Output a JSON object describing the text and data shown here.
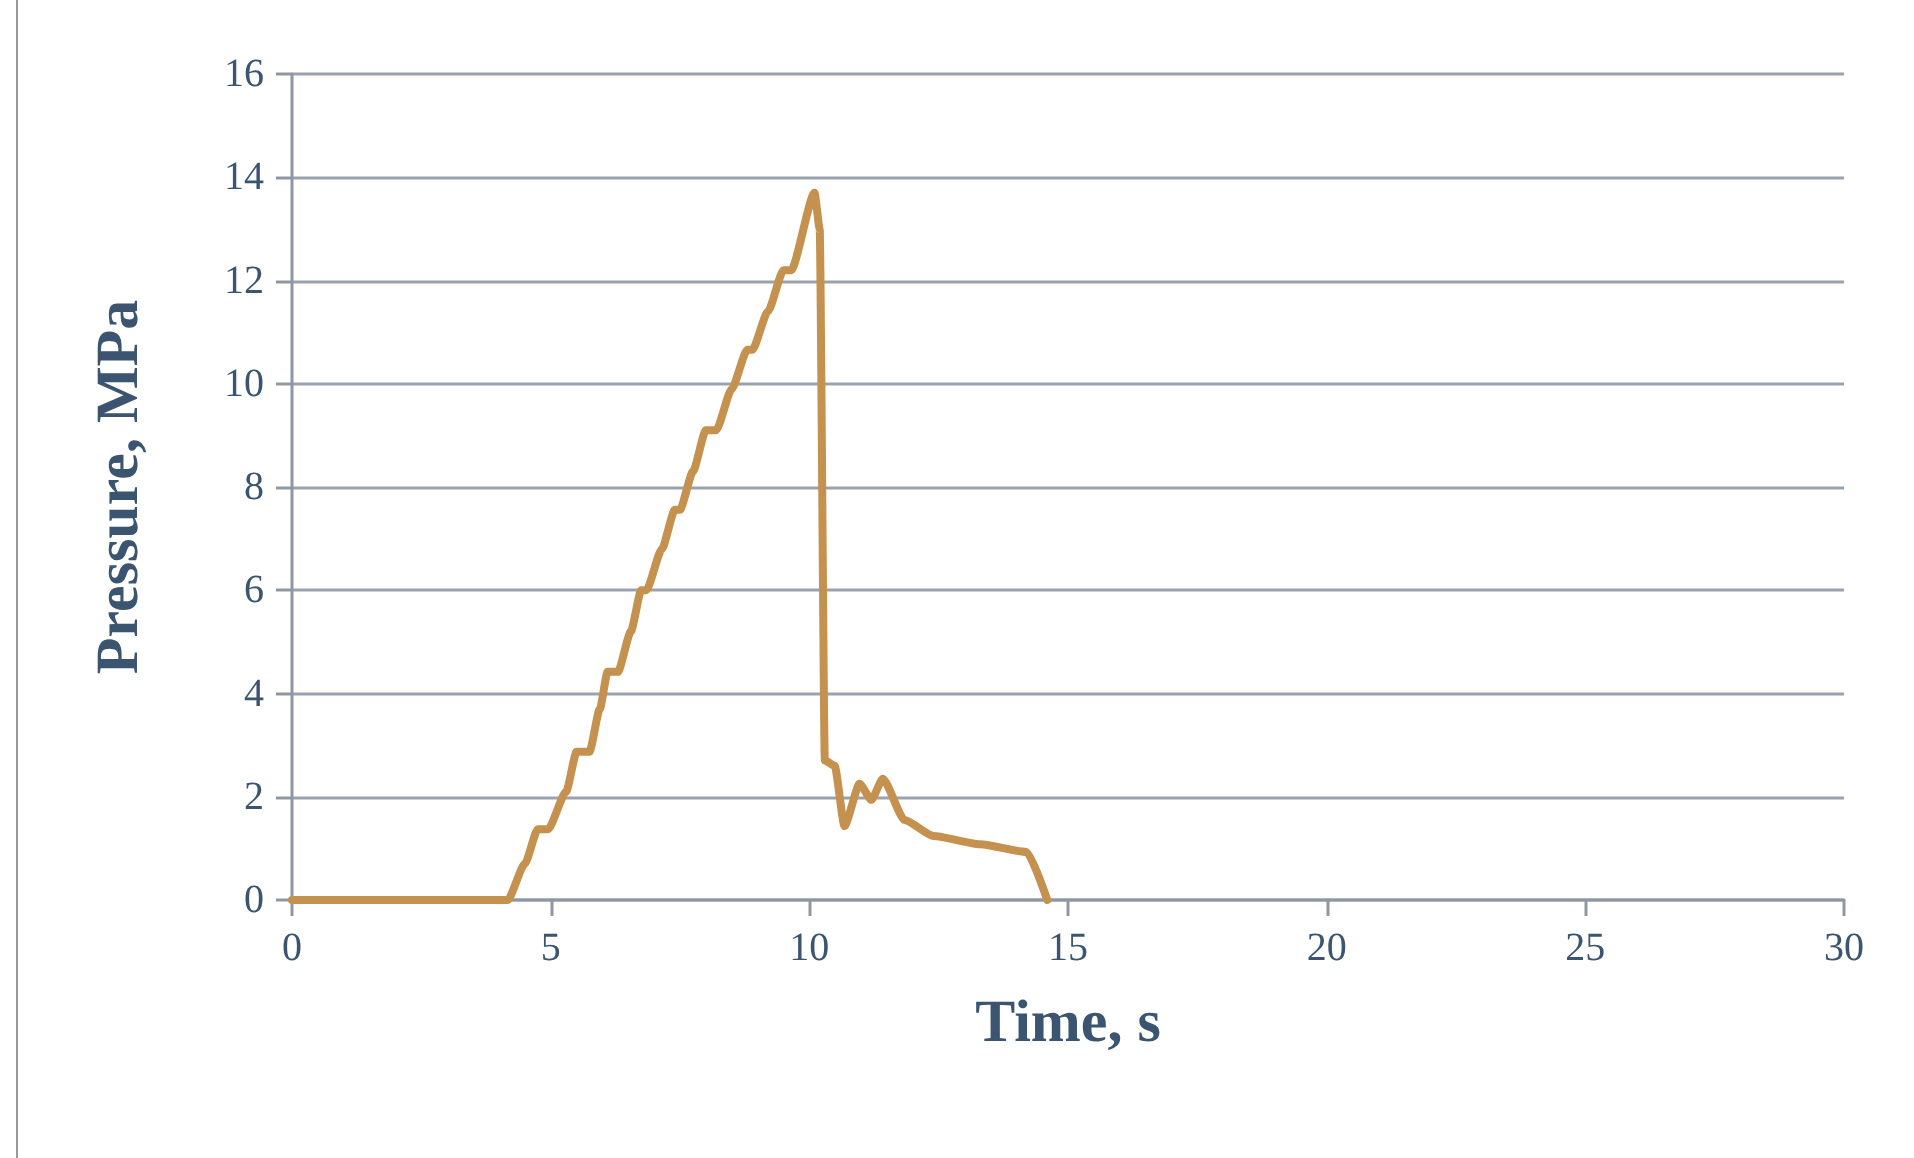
{
  "chart_data": {
    "type": "line",
    "xlabel": "Time, s",
    "ylabel": "Pressure, MPa",
    "x": [
      0,
      4.17,
      4.5,
      4.75,
      4.95,
      5.3,
      5.5,
      5.75,
      5.95,
      6.1,
      6.3,
      6.55,
      6.75,
      6.85,
      7.15,
      7.4,
      7.5,
      7.75,
      8.0,
      8.2,
      8.5,
      8.8,
      8.9,
      9.2,
      9.5,
      9.65,
      10.1,
      10.2,
      10.3,
      10.49,
      10.68,
      10.97,
      11.2,
      11.42,
      11.84,
      12.4,
      13.3,
      14.2,
      14.6
    ],
    "series": [
      {
        "color": "#c4914f",
        "values": [
          0,
          0,
          0.7,
          1.37,
          1.37,
          2.1,
          2.87,
          2.87,
          3.7,
          4.42,
          4.42,
          5.2,
          6.0,
          6.0,
          6.8,
          7.56,
          7.56,
          8.3,
          9.1,
          9.1,
          9.9,
          10.66,
          10.66,
          11.4,
          12.2,
          12.2,
          13.7,
          13.0,
          2.7,
          2.6,
          1.43,
          2.25,
          1.94,
          2.35,
          1.55,
          1.24,
          1.08,
          0.93,
          0
        ]
      }
    ],
    "xlim": [
      0,
      30
    ],
    "xticks": [
      0,
      5,
      10,
      15,
      20,
      25,
      30
    ],
    "ylim": [
      0,
      16
    ],
    "yticks": [
      0,
      2,
      4,
      6,
      8,
      10,
      12,
      14,
      16
    ],
    "grid": "y",
    "marker": "none",
    "line_style": "solid"
  }
}
